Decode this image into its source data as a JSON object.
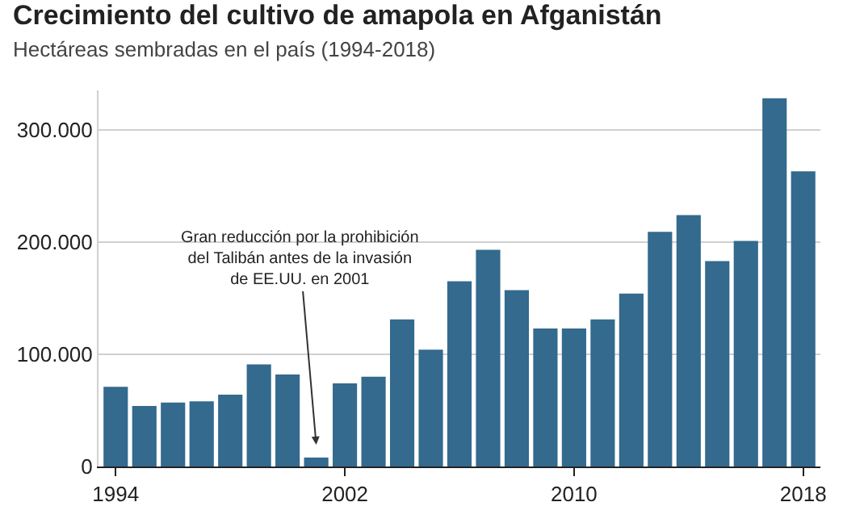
{
  "chart_data": {
    "type": "bar",
    "title": "Crecimiento del cultivo de amapola en Afganistán",
    "subtitle": "Hectáreas sembradas en el país (1994-2018)",
    "x": [
      1994,
      1995,
      1996,
      1997,
      1998,
      1999,
      2000,
      2001,
      2002,
      2003,
      2004,
      2005,
      2006,
      2007,
      2008,
      2009,
      2010,
      2011,
      2012,
      2013,
      2014,
      2015,
      2016,
      2017,
      2018
    ],
    "values": [
      71000,
      54000,
      57000,
      58000,
      64000,
      91000,
      82000,
      8000,
      74000,
      80000,
      131000,
      104000,
      165000,
      193000,
      157000,
      123000,
      123000,
      131000,
      154000,
      209000,
      224000,
      183000,
      201000,
      328000,
      263000
    ],
    "color": "#336a8e",
    "xlim": [
      1993.4,
      2018.6
    ],
    "xticks": [
      1994,
      2002,
      2010,
      2018
    ],
    "ylim": [
      0,
      335000
    ],
    "yticks": [
      {
        "value": 0,
        "label": "0"
      },
      {
        "value": 100000,
        "label": "100.000"
      },
      {
        "value": 200000,
        "label": "200.000"
      },
      {
        "value": 300000,
        "label": "300.000"
      }
    ],
    "grid": "y",
    "annotations": [
      {
        "text": "Gran reducción por la prohibición\ndel Talibán antes de la invasión\nde EE.UU. en 2001",
        "x": 2001,
        "y": 8000
      }
    ]
  }
}
